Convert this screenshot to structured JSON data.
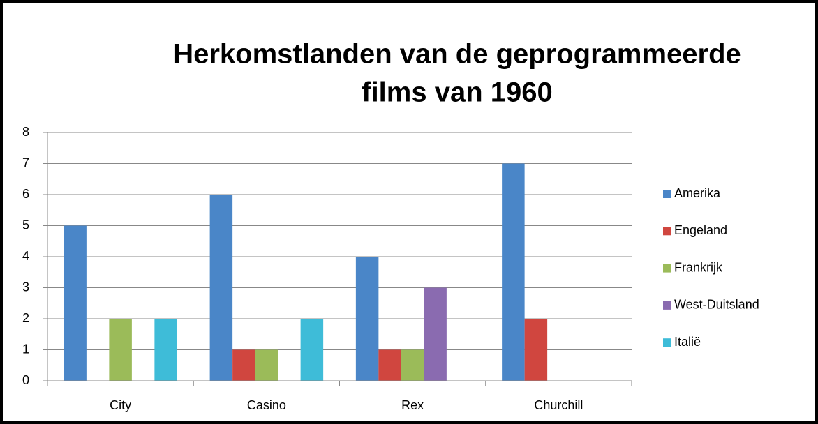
{
  "chart_data": {
    "type": "bar",
    "title": [
      "Herkomstlanden van de geprogrammeerde",
      "films van 1960"
    ],
    "categories": [
      "City",
      "Casino",
      "Rex",
      "Churchill"
    ],
    "series": [
      {
        "name": "Amerika",
        "color": "#4a86c8",
        "values": [
          5,
          6,
          4,
          7
        ]
      },
      {
        "name": "Engeland",
        "color": "#d0463f",
        "values": [
          0,
          1,
          1,
          2
        ]
      },
      {
        "name": "Frankrijk",
        "color": "#9bbb59",
        "values": [
          2,
          1,
          1,
          0
        ]
      },
      {
        "name": "West-Duitsland",
        "color": "#8a6bb0",
        "values": [
          0,
          0,
          3,
          0
        ]
      },
      {
        "name": "Italië",
        "color": "#3ebcd8",
        "values": [
          2,
          2,
          0,
          0
        ]
      }
    ],
    "ylim": [
      0,
      8
    ],
    "yticks": [
      0,
      1,
      2,
      3,
      4,
      5,
      6,
      7,
      8
    ],
    "grid": true,
    "legend": "right"
  }
}
